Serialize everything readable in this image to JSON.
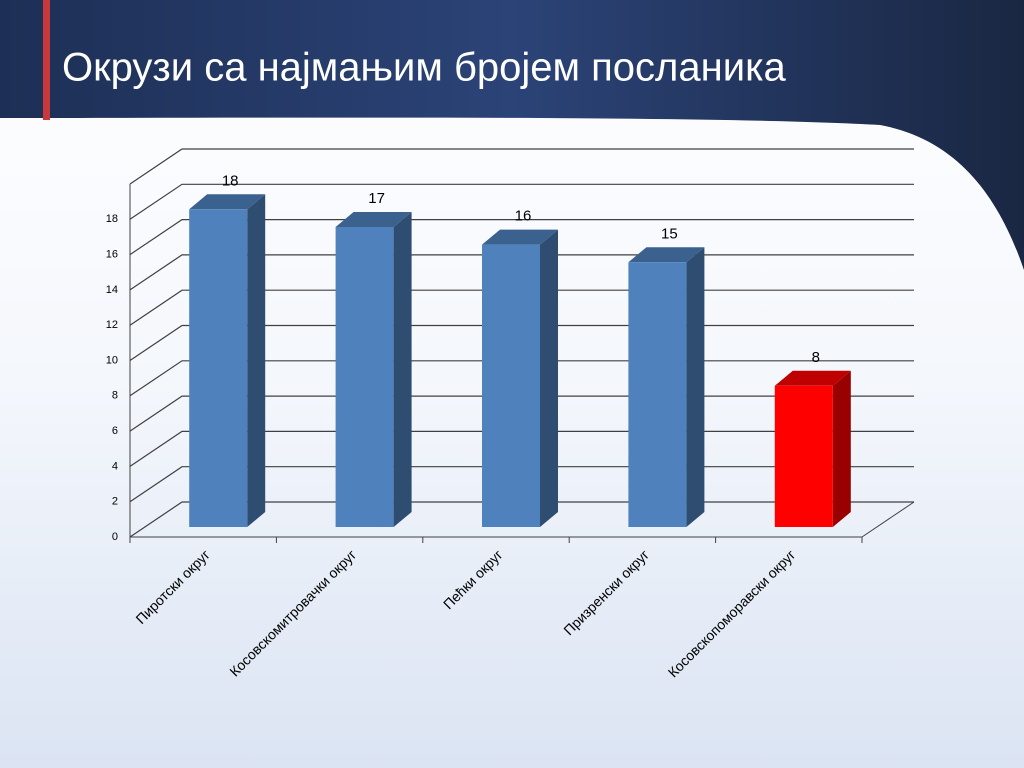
{
  "chart_data": {
    "type": "bar3d",
    "title": "Окрузи са најмањим бројем посланика",
    "categories": [
      "Пиротски округ",
      "Косовскомитровачки округ",
      "Пећки округ",
      "Призренски округ",
      "Косовскопоморавски округ"
    ],
    "values": [
      18,
      17,
      16,
      15,
      8
    ],
    "colors": [
      "#4f81bd",
      "#4f81bd",
      "#4f81bd",
      "#4f81bd",
      "#ff0000"
    ],
    "ylim": [
      0,
      20
    ],
    "yticks": [
      0,
      2,
      4,
      6,
      8,
      10,
      12,
      14,
      16,
      18
    ],
    "grid": true
  }
}
